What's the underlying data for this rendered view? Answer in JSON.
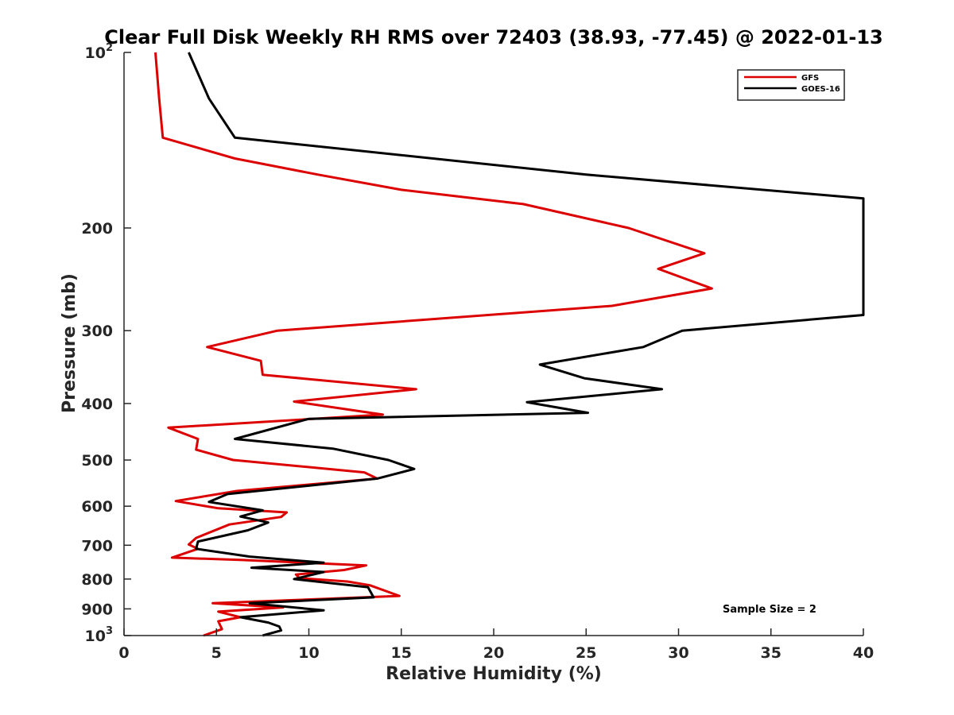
{
  "chart_data": {
    "type": "line",
    "title": "Clear Full Disk Weekly RH RMS over 72403 (38.93, -77.45) @ 2022-01-13",
    "xlabel": "Relative Humidity (%)",
    "ylabel": "Pressure (mb)",
    "xlim": [
      0,
      40
    ],
    "ylim": [
      100,
      1000
    ],
    "y_scale": "log",
    "y_reversed": true,
    "x_ticks": [
      0,
      5,
      10,
      15,
      20,
      25,
      30,
      35,
      40
    ],
    "y_ticks": [
      {
        "value": 100,
        "label": "10",
        "sup": "2"
      },
      {
        "value": 200,
        "label": "200"
      },
      {
        "value": 300,
        "label": "300"
      },
      {
        "value": 400,
        "label": "400"
      },
      {
        "value": 500,
        "label": "500"
      },
      {
        "value": 600,
        "label": "600"
      },
      {
        "value": 700,
        "label": "700"
      },
      {
        "value": 800,
        "label": "800"
      },
      {
        "value": 900,
        "label": "900"
      },
      {
        "value": 1000,
        "label": "10",
        "sup": "3"
      }
    ],
    "grid": false,
    "legend_position": "top-right",
    "annotation": "Sample Size = 2",
    "series": [
      {
        "name": "GFS",
        "color": "#dd0000",
        "points": [
          [
            1.7,
            100
          ],
          [
            1.9,
            120
          ],
          [
            2.1,
            140
          ],
          [
            6.0,
            152
          ],
          [
            10.5,
            162
          ],
          [
            15.0,
            172
          ],
          [
            21.6,
            182
          ],
          [
            27.3,
            200
          ],
          [
            31.4,
            221
          ],
          [
            28.9,
            235
          ],
          [
            31.8,
            254
          ],
          [
            26.4,
            272
          ],
          [
            8.3,
            300
          ],
          [
            4.5,
            320
          ],
          [
            7.4,
            338
          ],
          [
            7.5,
            357
          ],
          [
            15.8,
            378
          ],
          [
            9.2,
            397
          ],
          [
            14.0,
            418
          ],
          [
            2.4,
            440
          ],
          [
            4.0,
            460
          ],
          [
            3.9,
            480
          ],
          [
            5.9,
            500
          ],
          [
            13.0,
            525
          ],
          [
            13.7,
            538
          ],
          [
            6.1,
            565
          ],
          [
            2.8,
            588
          ],
          [
            5.1,
            605
          ],
          [
            8.8,
            615
          ],
          [
            8.5,
            626
          ],
          [
            5.7,
            645
          ],
          [
            3.9,
            680
          ],
          [
            3.5,
            698
          ],
          [
            4.0,
            710
          ],
          [
            2.6,
            735
          ],
          [
            6.4,
            742
          ],
          [
            13.1,
            758
          ],
          [
            11.9,
            772
          ],
          [
            9.3,
            786
          ],
          [
            9.5,
            797
          ],
          [
            12.1,
            808
          ],
          [
            13.3,
            820
          ],
          [
            14.9,
            855
          ],
          [
            4.8,
            880
          ],
          [
            8.6,
            895
          ],
          [
            5.1,
            910
          ],
          [
            6.3,
            930
          ],
          [
            5.1,
            945
          ],
          [
            5.2,
            960
          ],
          [
            5.3,
            975
          ],
          [
            4.3,
            1000
          ]
        ]
      },
      {
        "name": "GOES-16",
        "color": "#000000",
        "points": [
          [
            3.5,
            100
          ],
          [
            4.6,
            120
          ],
          [
            6.0,
            140
          ],
          [
            25.0,
            162
          ],
          [
            40.0,
            178
          ],
          [
            40.0,
            282
          ],
          [
            30.2,
            300
          ],
          [
            28.1,
            320
          ],
          [
            22.5,
            343
          ],
          [
            24.9,
            362
          ],
          [
            29.1,
            378
          ],
          [
            21.8,
            398
          ],
          [
            25.1,
            415
          ],
          [
            10.0,
            425
          ],
          [
            6.0,
            460
          ],
          [
            11.3,
            478
          ],
          [
            14.3,
            500
          ],
          [
            15.7,
            518
          ],
          [
            13.7,
            538
          ],
          [
            5.6,
            572
          ],
          [
            4.6,
            590
          ],
          [
            7.5,
            610
          ],
          [
            6.3,
            625
          ],
          [
            7.8,
            640
          ],
          [
            6.7,
            660
          ],
          [
            4.0,
            690
          ],
          [
            3.9,
            710
          ],
          [
            6.8,
            732
          ],
          [
            10.8,
            750
          ],
          [
            6.9,
            765
          ],
          [
            10.8,
            778
          ],
          [
            9.2,
            800
          ],
          [
            13.2,
            826
          ],
          [
            13.5,
            860
          ],
          [
            6.8,
            880
          ],
          [
            10.8,
            905
          ],
          [
            6.3,
            930
          ],
          [
            7.8,
            950
          ],
          [
            8.4,
            965
          ],
          [
            8.5,
            980
          ],
          [
            7.5,
            1000
          ]
        ]
      }
    ]
  }
}
